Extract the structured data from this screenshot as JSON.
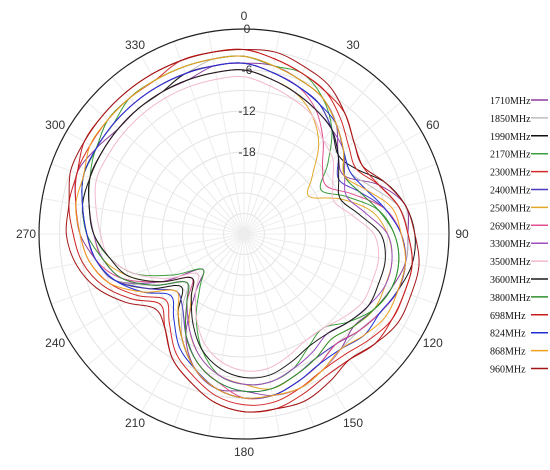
{
  "chart_data": {
    "type": "polar-line",
    "title": "",
    "angle_ticks": [
      "0",
      "30",
      "60",
      "90",
      "120",
      "150",
      "180",
      "210",
      "240",
      "270",
      "300",
      "330"
    ],
    "radial_ticks": [
      "0",
      "-6",
      "-12",
      "-18"
    ],
    "rlim": [
      -30,
      0
    ],
    "grid": true,
    "legend_position": "right",
    "series": [
      {
        "name": "1710MHz",
        "color": "#8b3d9b",
        "values": [
          -5,
          -5,
          -6,
          -7,
          -9,
          -12,
          -13,
          -9,
          -6,
          -6,
          -6,
          -7,
          -8,
          -9,
          -8,
          -7,
          -6,
          -6,
          -7,
          -7,
          -9,
          -13,
          -19,
          -22,
          -16,
          -10,
          -8,
          -6,
          -5,
          -4,
          -5,
          -6,
          -6,
          -6,
          -6,
          -5
        ]
      },
      {
        "name": "1850MHz",
        "color": "#bdbdbd",
        "values": [
          -4,
          -5,
          -6,
          -7,
          -9,
          -11,
          -12,
          -10,
          -7,
          -6,
          -6,
          -6,
          -7,
          -8,
          -8,
          -7,
          -6,
          -6,
          -6,
          -7,
          -9,
          -12,
          -16,
          -19,
          -15,
          -10,
          -8,
          -7,
          -6,
          -5,
          -5,
          -5,
          -5,
          -5,
          -5,
          -4
        ]
      },
      {
        "name": "1990MHz",
        "color": "#111111",
        "values": [
          -5,
          -6,
          -7,
          -8,
          -10,
          -12,
          -11,
          -8,
          -6,
          -5,
          -5,
          -6,
          -7,
          -8,
          -9,
          -8,
          -7,
          -6,
          -6,
          -7,
          -9,
          -12,
          -15,
          -18,
          -14,
          -10,
          -8,
          -7,
          -6,
          -6,
          -6,
          -6,
          -6,
          -6,
          -5,
          -5
        ]
      },
      {
        "name": "2170MHz",
        "color": "#3c9e3c",
        "values": [
          -4,
          -5,
          -5,
          -7,
          -10,
          -14,
          -17,
          -14,
          -10,
          -8,
          -7,
          -7,
          -8,
          -10,
          -12,
          -11,
          -9,
          -8,
          -8,
          -9,
          -12,
          -16,
          -20,
          -22,
          -18,
          -13,
          -10,
          -8,
          -7,
          -6,
          -5,
          -5,
          -4,
          -4,
          -4,
          -4
        ]
      },
      {
        "name": "2300MHz",
        "color": "#d42a2a",
        "values": [
          -3,
          -4,
          -5,
          -6,
          -8,
          -10,
          -11,
          -9,
          -7,
          -6,
          -5,
          -5,
          -5,
          -6,
          -7,
          -7,
          -6,
          -5,
          -5,
          -6,
          -8,
          -10,
          -13,
          -15,
          -12,
          -9,
          -7,
          -6,
          -5,
          -4,
          -4,
          -4,
          -4,
          -4,
          -3,
          -3
        ]
      },
      {
        "name": "2400MHz",
        "color": "#4a3ec0",
        "values": [
          -5,
          -6,
          -7,
          -8,
          -10,
          -12,
          -14,
          -12,
          -9,
          -7,
          -6,
          -6,
          -7,
          -8,
          -9,
          -9,
          -8,
          -7,
          -7,
          -8,
          -10,
          -13,
          -16,
          -17,
          -14,
          -10,
          -8,
          -7,
          -6,
          -5,
          -5,
          -5,
          -5,
          -5,
          -5,
          -5
        ]
      },
      {
        "name": "2500MHz",
        "color": "#e0a92a",
        "values": [
          -6,
          -7,
          -8,
          -10,
          -13,
          -17,
          -19,
          -15,
          -11,
          -9,
          -8,
          -8,
          -8,
          -9,
          -10,
          -9,
          -8,
          -7,
          -8,
          -9,
          -11,
          -14,
          -18,
          -20,
          -16,
          -12,
          -9,
          -8,
          -7,
          -6,
          -6,
          -6,
          -6,
          -6,
          -6,
          -6
        ]
      },
      {
        "name": "2690MHz",
        "color": "#e05090",
        "values": [
          -5,
          -6,
          -7,
          -9,
          -12,
          -15,
          -16,
          -13,
          -9,
          -7,
          -6,
          -6,
          -7,
          -8,
          -9,
          -8,
          -7,
          -6,
          -6,
          -8,
          -10,
          -13,
          -17,
          -20,
          -16,
          -11,
          -8,
          -7,
          -6,
          -5,
          -5,
          -5,
          -5,
          -5,
          -5,
          -5
        ]
      },
      {
        "name": "3300MHz",
        "color": "#9c4fc0",
        "values": [
          -6,
          -7,
          -8,
          -9,
          -10,
          -11,
          -13,
          -14,
          -12,
          -9,
          -8,
          -8,
          -9,
          -10,
          -11,
          -10,
          -9,
          -8,
          -8,
          -9,
          -11,
          -14,
          -17,
          -19,
          -15,
          -11,
          -9,
          -8,
          -7,
          -6,
          -6,
          -6,
          -6,
          -6,
          -6,
          -6
        ]
      },
      {
        "name": "3500MHz",
        "color": "#f2b8cf",
        "values": [
          -7,
          -8,
          -9,
          -10,
          -12,
          -13,
          -15,
          -16,
          -14,
          -11,
          -10,
          -10,
          -10,
          -11,
          -12,
          -12,
          -11,
          -10,
          -10,
          -11,
          -13,
          -16,
          -19,
          -21,
          -17,
          -13,
          -10,
          -9,
          -8,
          -7,
          -7,
          -7,
          -7,
          -7,
          -7,
          -7
        ]
      },
      {
        "name": "3600MHz",
        "color": "#1a1a1a",
        "values": [
          -6,
          -7,
          -8,
          -9,
          -10,
          -12,
          -14,
          -15,
          -13,
          -10,
          -9,
          -9,
          -9,
          -10,
          -11,
          -11,
          -10,
          -9,
          -9,
          -10,
          -12,
          -15,
          -18,
          -20,
          -16,
          -12,
          -10,
          -8,
          -7,
          -6,
          -6,
          -6,
          -6,
          -6,
          -6,
          -6
        ]
      },
      {
        "name": "3800MHz",
        "color": "#2f8f2f",
        "values": [
          -4,
          -5,
          -6,
          -7,
          -9,
          -11,
          -13,
          -12,
          -10,
          -8,
          -7,
          -7,
          -8,
          -9,
          -10,
          -9,
          -8,
          -7,
          -7,
          -8,
          -10,
          -13,
          -17,
          -19,
          -15,
          -11,
          -9,
          -7,
          -6,
          -5,
          -5,
          -4,
          -4,
          -4,
          -4,
          -4
        ]
      },
      {
        "name": "698MHz",
        "color": "#c81e1e",
        "values": [
          -3,
          -4,
          -5,
          -6,
          -7,
          -9,
          -10,
          -9,
          -7,
          -6,
          -5,
          -5,
          -5,
          -5,
          -6,
          -6,
          -5,
          -4,
          -4,
          -5,
          -7,
          -9,
          -12,
          -14,
          -11,
          -8,
          -6,
          -5,
          -4,
          -4,
          -3,
          -3,
          -3,
          -3,
          -3,
          -3
        ]
      },
      {
        "name": "824MHz",
        "color": "#1f2fd6",
        "values": [
          -5,
          -6,
          -7,
          -8,
          -9,
          -11,
          -12,
          -11,
          -9,
          -7,
          -6,
          -6,
          -7,
          -7,
          -8,
          -8,
          -7,
          -6,
          -6,
          -7,
          -9,
          -11,
          -14,
          -16,
          -13,
          -10,
          -8,
          -7,
          -6,
          -5,
          -5,
          -5,
          -5,
          -5,
          -5,
          -5
        ]
      },
      {
        "name": "868MHz",
        "color": "#f0a020",
        "values": [
          -4,
          -5,
          -6,
          -7,
          -9,
          -11,
          -13,
          -11,
          -8,
          -7,
          -6,
          -6,
          -6,
          -7,
          -8,
          -7,
          -6,
          -6,
          -6,
          -7,
          -9,
          -12,
          -15,
          -17,
          -13,
          -9,
          -7,
          -6,
          -5,
          -5,
          -4,
          -4,
          -4,
          -4,
          -4,
          -4
        ]
      },
      {
        "name": "960MHz",
        "color": "#a31515",
        "values": [
          -3,
          -3,
          -4,
          -5,
          -7,
          -9,
          -10,
          -8,
          -6,
          -5,
          -4,
          -4,
          -4,
          -5,
          -6,
          -5,
          -4,
          -4,
          -4,
          -5,
          -7,
          -9,
          -12,
          -13,
          -10,
          -7,
          -5,
          -4,
          -4,
          -3,
          -3,
          -3,
          -3,
          -3,
          -3,
          -3
        ]
      }
    ]
  }
}
